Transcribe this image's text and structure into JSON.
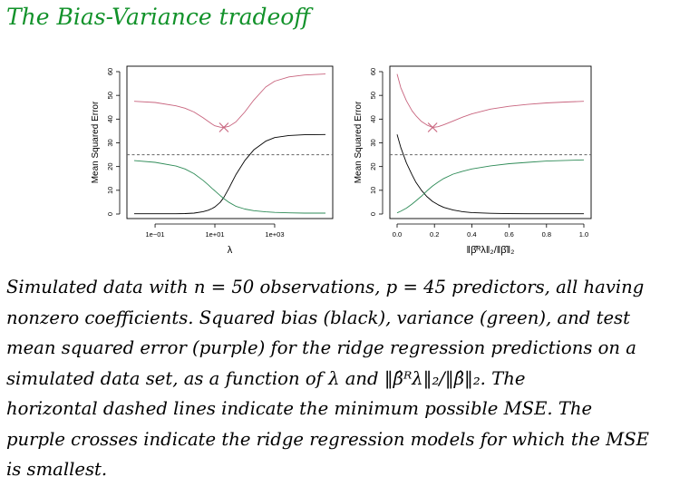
{
  "page": {
    "title": "The Bias-Variance tradeoff",
    "title_color": "#12922a",
    "caption_lines": [
      "Simulated data with n = 50 observations, p = 45 predictors, all having",
      "nonzero coefficients. Squared bias (black), variance (green), and test",
      "mean squared error (purple) for the ridge regression predictions on a",
      "simulated data set, as a function of λ and ‖β̂ᴿλ‖₂/‖β̂‖₂. The",
      "horizontal dashed lines indicate the minimum possible MSE. The",
      "purple crosses indicate the ridge regression models for which the MSE",
      "is smallest."
    ]
  },
  "colors": {
    "bias": "#000000",
    "variance": "#2e8b57",
    "mse": "#c8647e",
    "dashed": "#666666"
  },
  "chart_data": [
    {
      "type": "line",
      "xlabel": "λ",
      "ylabel": "Mean Squared Error",
      "x_scale": "log10",
      "xlim": [
        0.02,
        50000
      ],
      "ylim": [
        0,
        60
      ],
      "x_ticks": [
        0.1,
        10,
        1000
      ],
      "x_tick_labels": [
        "1e−01",
        "1e+01",
        "1e+03"
      ],
      "y_ticks": [
        0,
        10,
        20,
        30,
        40,
        50,
        60
      ],
      "dashed_hline": 25,
      "min_marker": {
        "x": 20,
        "y": 36.5
      },
      "series": [
        {
          "color": "#000000",
          "x": [
            0.02,
            0.1,
            0.5,
            1,
            2,
            4,
            6,
            8,
            10,
            15,
            20,
            30,
            50,
            100,
            200,
            500,
            1000,
            3000,
            10000,
            50000
          ],
          "values": [
            0.1,
            0.1,
            0.1,
            0.2,
            0.4,
            1,
            1.6,
            2.3,
            3,
            4.9,
            7,
            11,
            16.5,
            22.5,
            27,
            30.7,
            32.2,
            33.1,
            33.4,
            33.5
          ]
        },
        {
          "color": "#2e8b57",
          "x": [
            0.02,
            0.1,
            0.5,
            1,
            2,
            4,
            6,
            8,
            10,
            15,
            20,
            30,
            50,
            100,
            200,
            500,
            1000,
            3000,
            10000,
            50000
          ],
          "values": [
            22.5,
            21.8,
            20.2,
            19,
            17,
            14.2,
            12.3,
            10.8,
            9.8,
            7.8,
            6.5,
            4.9,
            3.3,
            2.1,
            1.4,
            0.9,
            0.7,
            0.5,
            0.4,
            0.4
          ]
        },
        {
          "color": "#c8647e",
          "x": [
            0.02,
            0.1,
            0.5,
            1,
            2,
            4,
            6,
            8,
            10,
            15,
            20,
            30,
            50,
            100,
            200,
            500,
            1000,
            3000,
            10000,
            50000
          ],
          "values": [
            47.5,
            47,
            45.6,
            44.6,
            43,
            40.6,
            39,
            37.9,
            37.2,
            36.6,
            36.5,
            37,
            38.8,
            43,
            48,
            53.5,
            56,
            57.8,
            58.6,
            59
          ]
        }
      ]
    },
    {
      "type": "line",
      "xlabel": "‖β̂ᴿλ‖₂/‖β̂‖₂",
      "ylabel": "Mean Squared Error",
      "xlim": [
        0,
        1
      ],
      "ylim": [
        0,
        60
      ],
      "x_ticks": [
        0,
        0.2,
        0.4,
        0.6,
        0.8,
        1
      ],
      "x_tick_labels": [
        "0.0",
        "0.2",
        "0.4",
        "0.6",
        "0.8",
        "1.0"
      ],
      "y_ticks": [
        0,
        10,
        20,
        30,
        40,
        50,
        60
      ],
      "dashed_hline": 25,
      "min_marker": {
        "x": 0.19,
        "y": 36.5
      },
      "series": [
        {
          "color": "#000000",
          "x": [
            0,
            0.02,
            0.05,
            0.08,
            0.1,
            0.13,
            0.16,
            0.19,
            0.22,
            0.25,
            0.3,
            0.35,
            0.4,
            0.5,
            0.6,
            0.7,
            0.8,
            0.9,
            1.0
          ],
          "values": [
            33.5,
            28,
            21.5,
            16.5,
            13.5,
            10,
            7.3,
            5.3,
            3.9,
            2.8,
            1.7,
            1.0,
            0.6,
            0.3,
            0.15,
            0.1,
            0.1,
            0.1,
            0.1
          ]
        },
        {
          "color": "#2e8b57",
          "x": [
            0,
            0.02,
            0.05,
            0.08,
            0.1,
            0.13,
            0.16,
            0.19,
            0.22,
            0.25,
            0.3,
            0.35,
            0.4,
            0.5,
            0.6,
            0.7,
            0.8,
            0.9,
            1.0
          ],
          "values": [
            0.5,
            1.2,
            2.5,
            4.2,
            5.5,
            7.5,
            9.8,
            11.8,
            13.5,
            15,
            16.8,
            18,
            19,
            20.3,
            21.2,
            21.8,
            22.3,
            22.6,
            22.8
          ]
        },
        {
          "color": "#c8647e",
          "x": [
            0,
            0.02,
            0.05,
            0.08,
            0.1,
            0.13,
            0.16,
            0.19,
            0.22,
            0.25,
            0.3,
            0.35,
            0.4,
            0.5,
            0.6,
            0.7,
            0.8,
            0.9,
            1.0
          ],
          "values": [
            59,
            53.2,
            47.7,
            43.5,
            41.5,
            39,
            37.5,
            36.5,
            36.8,
            37.6,
            39.2,
            40.8,
            42.2,
            44.2,
            45.4,
            46.2,
            46.8,
            47.2,
            47.5
          ]
        }
      ]
    }
  ]
}
